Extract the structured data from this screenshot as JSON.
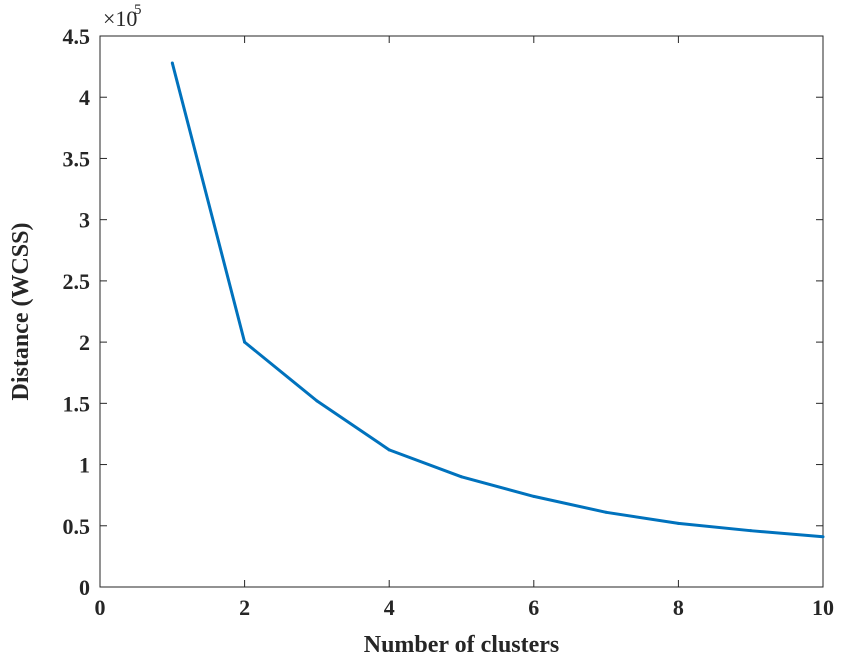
{
  "chart_data": {
    "type": "line",
    "title": "",
    "xlabel": "Number of clusters",
    "ylabel": "Distance (WCSS)",
    "xlim": [
      0,
      10
    ],
    "ylim": [
      0,
      4.5
    ],
    "xticks": [
      "0",
      "2",
      "4",
      "6",
      "8",
      "10"
    ],
    "yticks": [
      "0",
      "0.5",
      "1",
      "1.5",
      "2",
      "2.5",
      "3",
      "3.5",
      "4",
      "4.5"
    ],
    "y_exponent_base": "×10",
    "y_exponent_power": "5",
    "grid": false,
    "series": [
      {
        "color": "#0072bd",
        "x": [
          1,
          2,
          3,
          4,
          5,
          6,
          7,
          8,
          9,
          10
        ],
        "y": [
          4.28,
          2.0,
          1.52,
          1.12,
          0.9,
          0.74,
          0.61,
          0.52,
          0.46,
          0.41
        ]
      }
    ]
  }
}
